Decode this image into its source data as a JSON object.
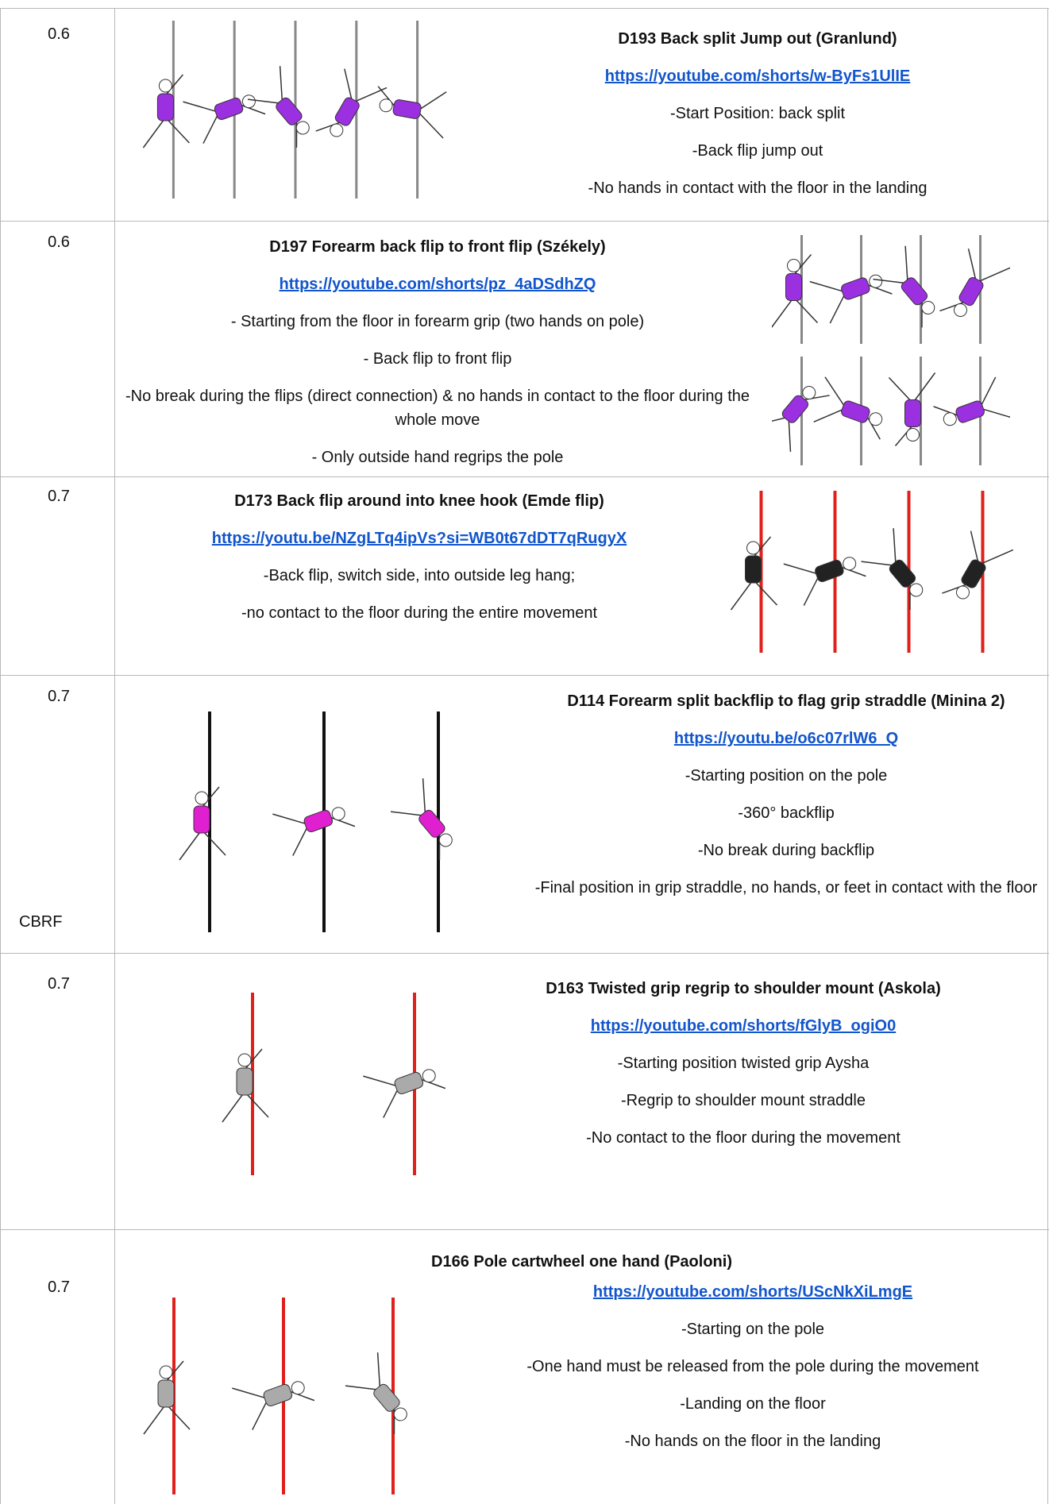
{
  "rows": [
    {
      "score": 0.6,
      "title": "D193 Back split Jump out (Granlund)",
      "link": "https://youtube.com/shorts/w-ByFs1UlIE",
      "lines": [
        "-Start Position: back split",
        "-Back flip jump out",
        "-No hands in contact with the floor in the landing"
      ]
    },
    {
      "score": 0.6,
      "title": "D197 Forearm back flip to front flip (Székely)",
      "link": "https://youtube.com/shorts/pz_4aDSdhZQ",
      "lines": [
        "- Starting from the floor in forearm grip (two hands on pole)",
        "- Back flip to front flip",
        "-No break during the flips (direct connection) & no hands in contact to the floor during the whole move",
        "- Only outside hand regrips the pole"
      ]
    },
    {
      "score": 0.7,
      "title": "D173 Back flip around into knee hook (Emde flip)",
      "link": "https://youtu.be/NZgLTq4ipVs?si=WB0t67dDT7qRugyX",
      "lines": [
        "-Back flip, switch side, into outside leg hang;",
        "-no contact to the floor during the entire movement"
      ]
    },
    {
      "score": 0.7,
      "note": "CBRF",
      "title": "D114 Forearm split backflip to flag grip straddle (Minina 2)",
      "link": "https://youtu.be/o6c07rlW6_Q",
      "lines": [
        "-Starting position on the pole",
        "-360° backflip",
        "-No break during backflip",
        "-Final position in grip straddle, no hands, or feet in contact with the floor"
      ]
    },
    {
      "score": 0.7,
      "title": "D163 Twisted grip regrip to shoulder mount (Askola)",
      "link": "https://youtube.com/shorts/fGlyB_ogiO0",
      "lines": [
        "-Starting position twisted grip Aysha",
        "-Regrip to shoulder mount straddle",
        "-No contact to the floor during the movement"
      ]
    },
    {
      "score": 0.7,
      "title": "D166 Pole cartwheel one hand (Paoloni)",
      "link": "https://youtube.com/shorts/UScNkXiLmgE",
      "lines": [
        "-Starting on the pole",
        "-One hand must be released from the pole during the movement",
        "-Landing on the floor",
        "-No hands on the floor in the landing"
      ]
    }
  ]
}
